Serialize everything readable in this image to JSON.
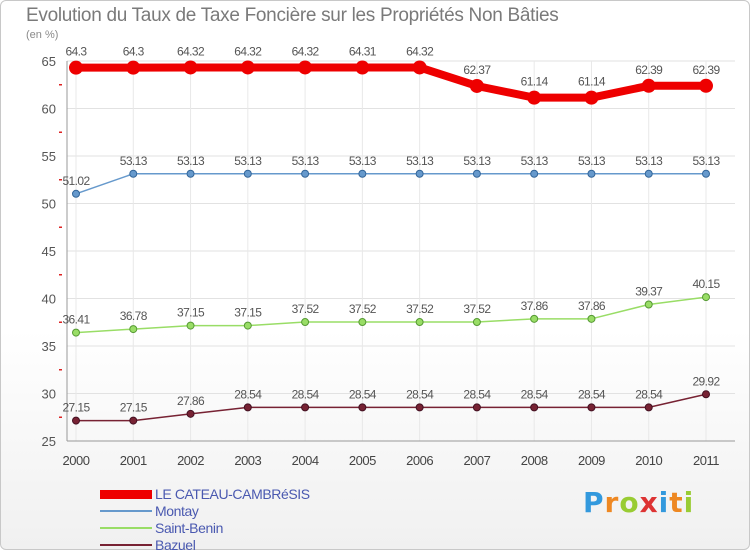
{
  "chart_data": {
    "type": "line",
    "title": "Evolution du Taux de Taxe Foncière sur les Propriétés Non Bâties",
    "subtitle": "(en %)",
    "xlabel": "",
    "ylabel": "",
    "x": [
      "2000",
      "2001",
      "2002",
      "2003",
      "2004",
      "2005",
      "2006",
      "2007",
      "2008",
      "2009",
      "2010",
      "2011"
    ],
    "ylim": [
      25,
      65
    ],
    "yticks": [
      25,
      30,
      35,
      40,
      45,
      50,
      55,
      60,
      65
    ],
    "grid": true,
    "legend_position": "bottom-left",
    "series": [
      {
        "name": "LE CATEAU-CAMBRéSIS",
        "color": "#ee0000",
        "values": [
          64.3,
          64.3,
          64.32,
          64.32,
          64.32,
          64.31,
          64.32,
          62.37,
          61.14,
          61.14,
          62.39,
          62.39
        ],
        "labels": [
          "64.3",
          "64.3",
          "64.32",
          "64.32",
          "64.32",
          "64.31",
          "64.32",
          "62.37",
          "61.14",
          "61.14",
          "62.39",
          "62.39"
        ]
      },
      {
        "name": "Montay",
        "color": "#6699cc",
        "values": [
          51.02,
          53.13,
          53.13,
          53.13,
          53.13,
          53.13,
          53.13,
          53.13,
          53.13,
          53.13,
          53.13,
          53.13
        ],
        "labels": [
          "51.02",
          "53.13",
          "53.13",
          "53.13",
          "53.13",
          "53.13",
          "53.13",
          "53.13",
          "53.13",
          "53.13",
          "53.13",
          "53.13"
        ]
      },
      {
        "name": "Saint-Benin",
        "color": "#99dd66",
        "values": [
          36.41,
          36.78,
          37.15,
          37.15,
          37.52,
          37.52,
          37.52,
          37.52,
          37.86,
          37.86,
          39.37,
          40.15
        ],
        "labels": [
          "36.41",
          "36.78",
          "37.15",
          "37.15",
          "37.52",
          "37.52",
          "37.52",
          "37.52",
          "37.86",
          "37.86",
          "39.37",
          "40.15"
        ]
      },
      {
        "name": "Bazuel",
        "color": "#772233",
        "values": [
          27.15,
          27.15,
          27.86,
          28.54,
          28.54,
          28.54,
          28.54,
          28.54,
          28.54,
          28.54,
          28.54,
          29.92
        ],
        "labels": [
          "27.15",
          "27.15",
          "27.86",
          "28.54",
          "28.54",
          "28.54",
          "28.54",
          "28.54",
          "28.54",
          "28.54",
          "28.54",
          "29.92"
        ]
      }
    ]
  },
  "brand": {
    "letters": [
      "P",
      "r",
      "o",
      "x",
      "i",
      "t",
      "i"
    ],
    "colors": [
      "#3399dd",
      "#ee8822",
      "#99cc33",
      "#dd3333",
      "#3399dd",
      "#ee8822",
      "#99cc33"
    ]
  }
}
